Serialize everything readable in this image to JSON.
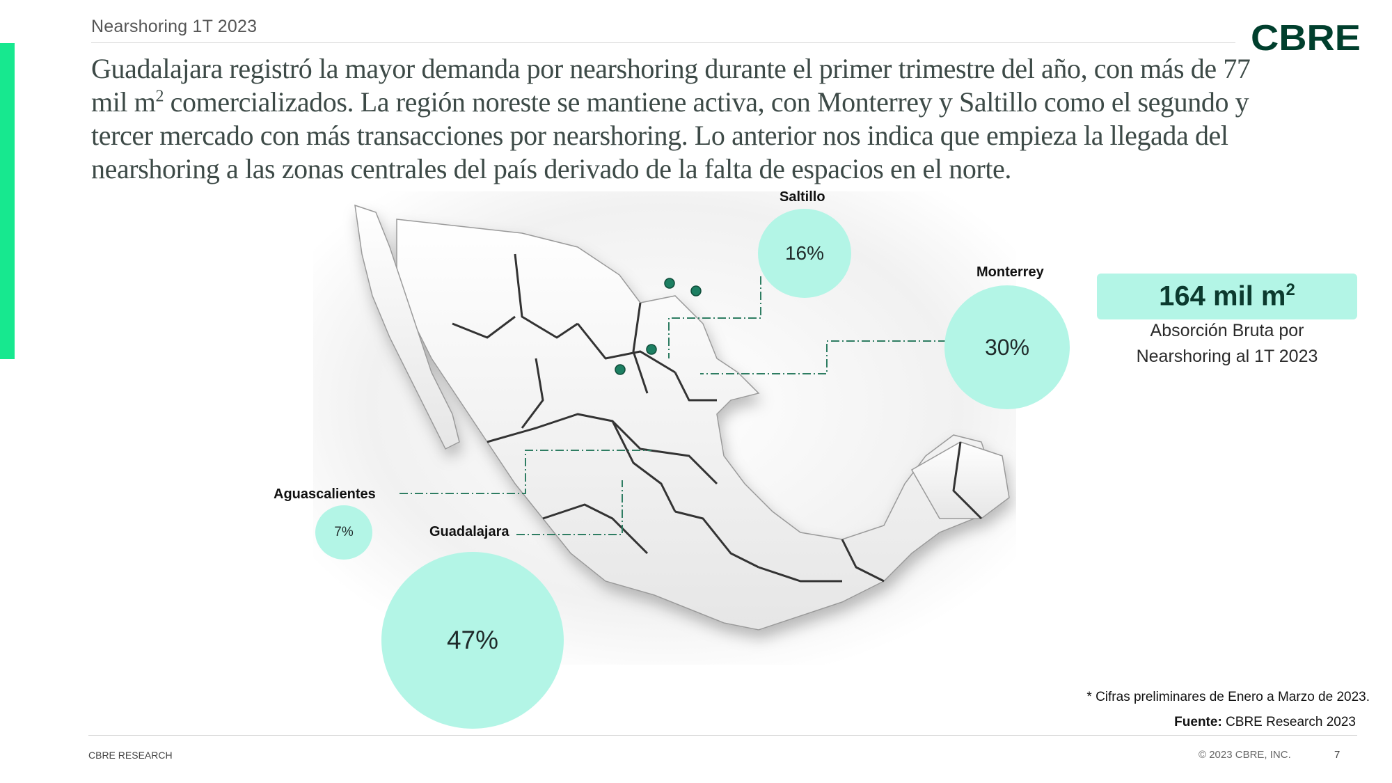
{
  "section_title": "Nearshoring 1T 2023",
  "logo_text": "CBRE",
  "headline": {
    "line1": "Guadalajara registró la mayor demanda por nearshoring durante el primer trimestre del año, con más de 77",
    "line2_a": "mil m",
    "line2_sup": "2",
    "line2_b": " comercializados. La región noreste se mantiene activa, con Monterrey y Saltillo como el segundo y",
    "line3": "tercer mercado con más transacciones por nearshoring. Lo anterior nos indica que empieza la llegada del",
    "line4": "nearshoring a las zonas centrales del país derivado de la falta de espacios en el norte."
  },
  "cities": [
    {
      "name": "Saltillo",
      "share": "16%"
    },
    {
      "name": "Monterrey",
      "share": "30%"
    },
    {
      "name": "Aguascalientes",
      "share": "7%"
    },
    {
      "name": "Guadalajara",
      "share": "47%"
    }
  ],
  "kpi": {
    "value": "164 mil m",
    "value_sup": "2",
    "caption_line1": "Absorción Bruta por",
    "caption_line2": "Nearshoring al 1T 2023"
  },
  "note": "* Cifras preliminares de Enero a Marzo de 2023.",
  "source": {
    "label": "Fuente:",
    "text": " CBRE Research 2023"
  },
  "footer": {
    "left": "CBRE RESEARCH",
    "right": "© 2023 CBRE, INC.",
    "page": "7"
  },
  "colors": {
    "accent": "#17e88f",
    "bubble": "#b3f5e6",
    "brand": "#003f2d",
    "marker": "#1d7f62",
    "leader": "#2e7d62"
  }
}
